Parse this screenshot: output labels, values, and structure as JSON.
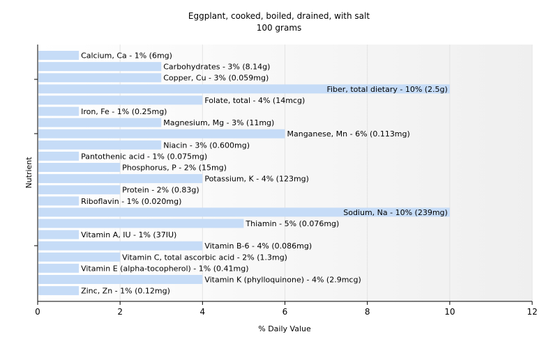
{
  "chart_data": {
    "type": "bar",
    "orientation": "horizontal",
    "title": "Eggplant, cooked, boiled, drained, with salt",
    "subtitle": "100 grams",
    "xlabel": "% Daily Value",
    "ylabel": "Nutrient",
    "xlim": [
      0,
      12
    ],
    "xticks": [
      0,
      2,
      4,
      6,
      8,
      10,
      12
    ],
    "grid": true,
    "legend": "none",
    "bar_color": "#c6dcf7",
    "categories": [
      "Calcium, Ca",
      "Carbohydrates",
      "Copper, Cu",
      "Fiber, total dietary",
      "Folate, total",
      "Iron, Fe",
      "Magnesium, Mg",
      "Manganese, Mn",
      "Niacin",
      "Pantothenic acid",
      "Phosphorus, P",
      "Potassium, K",
      "Protein",
      "Riboflavin",
      "Sodium, Na",
      "Thiamin",
      "Vitamin A, IU",
      "Vitamin B-6",
      "Vitamin C, total ascorbic acid",
      "Vitamin E (alpha-tocopherol)",
      "Vitamin K (phylloquinone)",
      "Zinc, Zn"
    ],
    "values": [
      1,
      3,
      3,
      10,
      4,
      1,
      3,
      6,
      3,
      1,
      2,
      4,
      2,
      1,
      10,
      5,
      1,
      4,
      2,
      1,
      4,
      1
    ],
    "labels": [
      "Calcium, Ca - 1% (6mg)",
      "Carbohydrates - 3% (8.14g)",
      "Copper, Cu - 3% (0.059mg)",
      "Fiber, total dietary - 10% (2.5g)",
      "Folate, total - 4% (14mcg)",
      "Iron, Fe - 1% (0.25mg)",
      "Magnesium, Mg - 3% (11mg)",
      "Manganese, Mn - 6% (0.113mg)",
      "Niacin - 3% (0.600mg)",
      "Pantothenic acid - 1% (0.075mg)",
      "Phosphorus, P - 2% (15mg)",
      "Potassium, K - 4% (123mg)",
      "Protein - 2% (0.83g)",
      "Riboflavin - 1% (0.020mg)",
      "Sodium, Na - 10% (239mg)",
      "Thiamin - 5% (0.076mg)",
      "Vitamin A, IU - 1% (37IU)",
      "Vitamin B-6 - 4% (0.086mg)",
      "Vitamin C, total ascorbic acid - 2% (1.3mg)",
      "Vitamin E (alpha-tocopherol) - 1% (0.41mg)",
      "Vitamin K (phylloquinone) - 4% (2.9mcg)",
      "Zinc, Zn - 1% (0.12mg)"
    ]
  }
}
